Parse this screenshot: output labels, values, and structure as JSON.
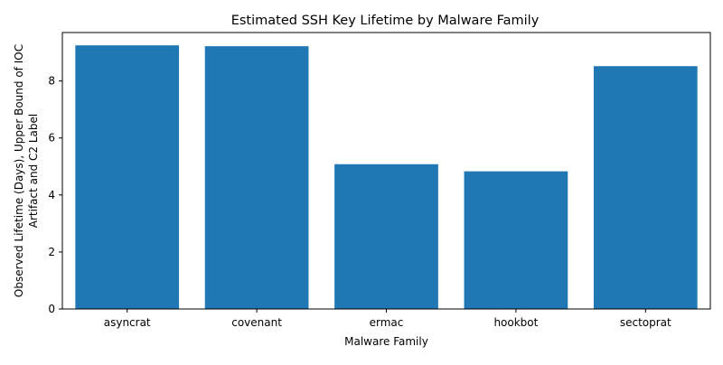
{
  "chart_data": {
    "type": "bar",
    "title": "Estimated SSH Key Lifetime by Malware Family",
    "xlabel": "Malware Family",
    "ylabel_lines": [
      "Observed Lifetime (Days), Upper Bound of IOC",
      "Artifact and C2 Label"
    ],
    "categories": [
      "asyncrat",
      "covenant",
      "ermac",
      "hookbot",
      "sectoprat"
    ],
    "values": [
      9.25,
      9.22,
      5.08,
      4.83,
      8.52
    ],
    "ylim": [
      0,
      9.7
    ],
    "yticks": [
      0,
      2,
      4,
      6,
      8
    ],
    "grid": false,
    "bar_color": "#1f77b4"
  }
}
